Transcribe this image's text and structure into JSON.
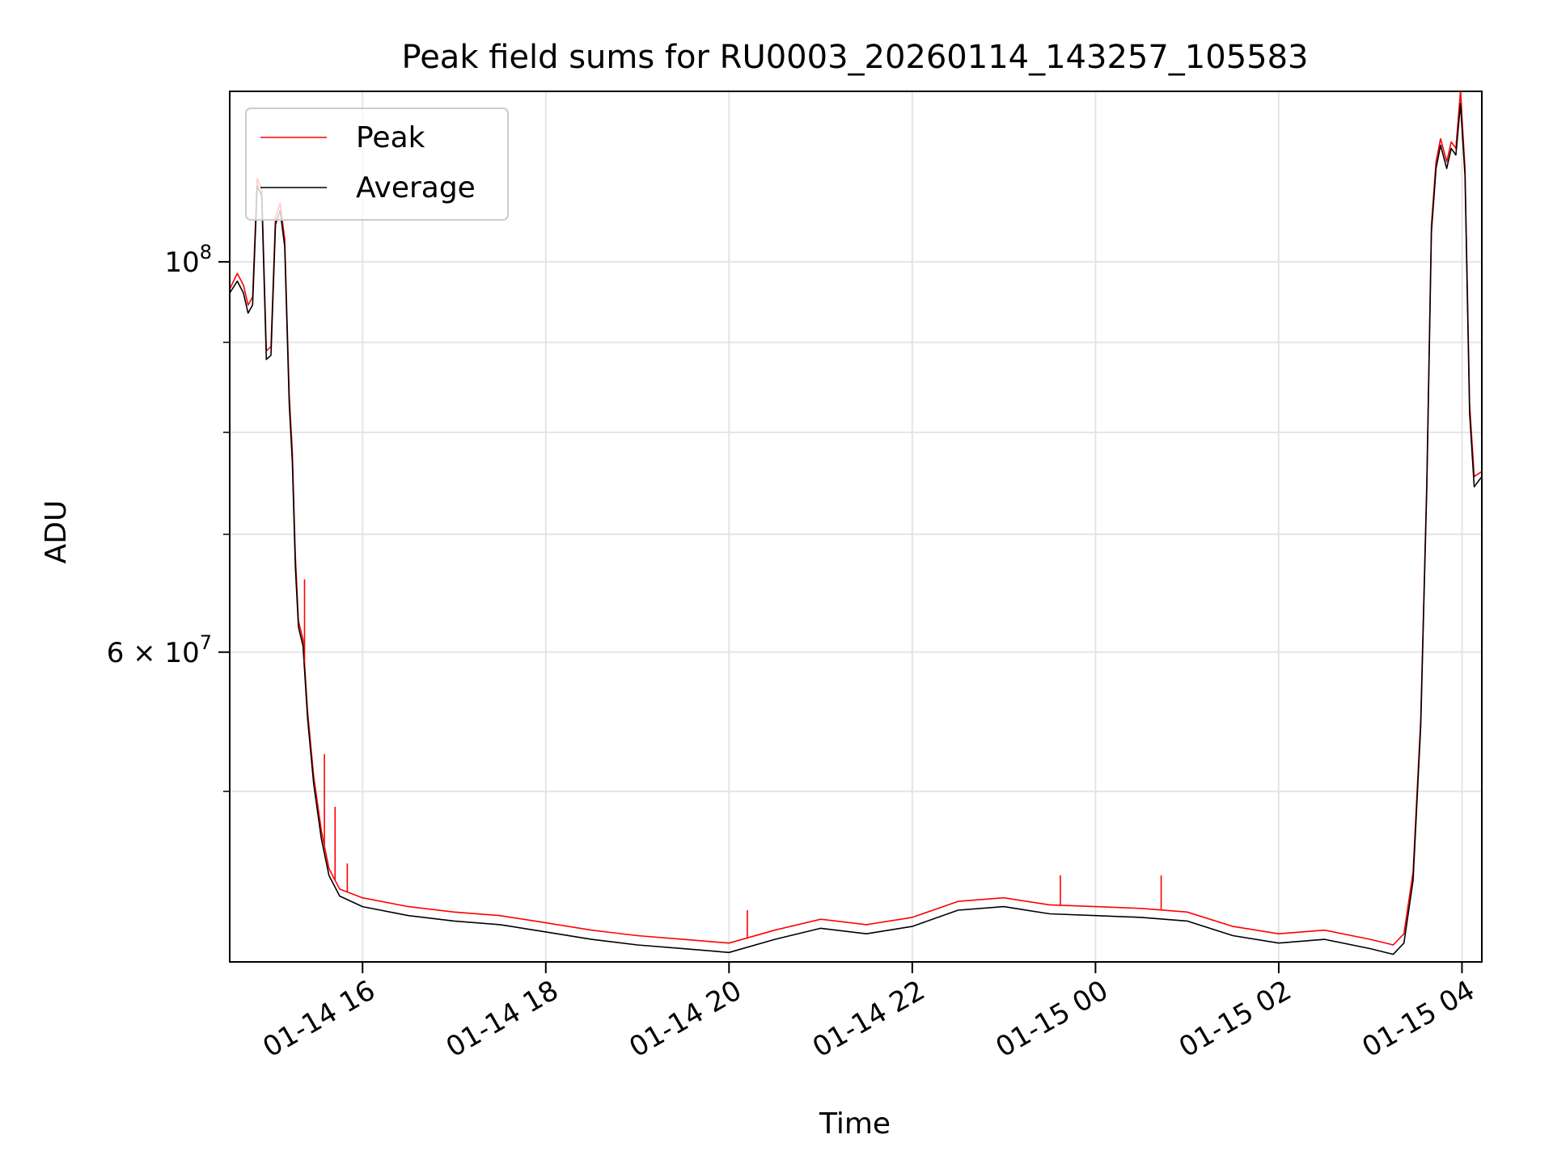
{
  "chart_data": {
    "type": "line",
    "title": "Peak field sums for RU0003_20260114_143257_105583",
    "xlabel": "Time",
    "ylabel": "ADU",
    "y_scale": "log",
    "ylim": [
      40000000,
      125000000
    ],
    "xlim": [
      "2026-01-14 14:33",
      "2026-01-15 04:13"
    ],
    "grid": true,
    "legend_position": "top-left",
    "x_ticks": [
      "01-14 16",
      "01-14 18",
      "01-14 20",
      "01-14 22",
      "01-15 00",
      "01-15 02",
      "01-15 04"
    ],
    "x_tick_values": [
      "2026-01-14 16:00",
      "2026-01-14 18:00",
      "2026-01-14 20:00",
      "2026-01-14 22:00",
      "2026-01-15 00:00",
      "2026-01-15 02:00",
      "2026-01-15 04:00"
    ],
    "y_ticks": [
      {
        "value": 100000000,
        "base": "10",
        "exp": "8",
        "mantissa": ""
      },
      {
        "value": 60000000,
        "base": "10",
        "exp": "7",
        "mantissa": "6 × "
      }
    ],
    "y_minor_ticks": [
      50000000,
      70000000,
      80000000,
      90000000
    ],
    "series": [
      {
        "name": "Peak",
        "color": "#ff0000",
        "points": [
          [
            "2026-01-14 14:33",
            96500000
          ],
          [
            "2026-01-14 14:38",
            98500000
          ],
          [
            "2026-01-14 14:42",
            97000000
          ],
          [
            "2026-01-14 14:45",
            94500000
          ],
          [
            "2026-01-14 14:48",
            95500000
          ],
          [
            "2026-01-14 14:51",
            111500000
          ],
          [
            "2026-01-14 14:54",
            110000000
          ],
          [
            "2026-01-14 14:57",
            89000000
          ],
          [
            "2026-01-14 15:00",
            89500000
          ],
          [
            "2026-01-14 15:03",
            106000000
          ],
          [
            "2026-01-14 15:06",
            108000000
          ],
          [
            "2026-01-14 15:09",
            103000000
          ],
          [
            "2026-01-14 15:12",
            84000000
          ],
          [
            "2026-01-14 15:14",
            78000000
          ],
          [
            "2026-01-14 15:16",
            68000000
          ],
          [
            "2026-01-14 15:18",
            62500000
          ],
          [
            "2026-01-14 15:21",
            61000000
          ],
          [
            "2026-01-14 15:24",
            55500000
          ],
          [
            "2026-01-14 15:28",
            51000000
          ],
          [
            "2026-01-14 15:33",
            47500000
          ],
          [
            "2026-01-14 15:38",
            45200000
          ],
          [
            "2026-01-14 15:45",
            44000000
          ],
          [
            "2026-01-14 16:00",
            43500000
          ],
          [
            "2026-01-14 16:30",
            43000000
          ],
          [
            "2026-01-14 17:00",
            42700000
          ],
          [
            "2026-01-14 17:30",
            42500000
          ],
          [
            "2026-01-14 18:00",
            42100000
          ],
          [
            "2026-01-14 18:30",
            41700000
          ],
          [
            "2026-01-14 19:00",
            41400000
          ],
          [
            "2026-01-14 19:30",
            41200000
          ],
          [
            "2026-01-14 20:00",
            41000000
          ],
          [
            "2026-01-14 20:30",
            41700000
          ],
          [
            "2026-01-14 21:00",
            42300000
          ],
          [
            "2026-01-14 21:30",
            42000000
          ],
          [
            "2026-01-14 22:00",
            42400000
          ],
          [
            "2026-01-14 22:30",
            43300000
          ],
          [
            "2026-01-14 23:00",
            43500000
          ],
          [
            "2026-01-14 23:30",
            43100000
          ],
          [
            "2026-01-15 00:00",
            43000000
          ],
          [
            "2026-01-15 00:30",
            42900000
          ],
          [
            "2026-01-15 01:00",
            42700000
          ],
          [
            "2026-01-15 01:30",
            41900000
          ],
          [
            "2026-01-15 02:00",
            41500000
          ],
          [
            "2026-01-15 02:30",
            41700000
          ],
          [
            "2026-01-15 03:00",
            41200000
          ],
          [
            "2026-01-15 03:15",
            40900000
          ],
          [
            "2026-01-15 03:22",
            41500000
          ],
          [
            "2026-01-15 03:28",
            45000000
          ],
          [
            "2026-01-15 03:33",
            55000000
          ],
          [
            "2026-01-15 03:37",
            75000000
          ],
          [
            "2026-01-15 03:40",
            105000000
          ],
          [
            "2026-01-15 03:43",
            114000000
          ],
          [
            "2026-01-15 03:46",
            117500000
          ],
          [
            "2026-01-15 03:50",
            114000000
          ],
          [
            "2026-01-15 03:53",
            117000000
          ],
          [
            "2026-01-15 03:56",
            116000000
          ],
          [
            "2026-01-15 03:59",
            125000000
          ],
          [
            "2026-01-15 04:02",
            113000000
          ],
          [
            "2026-01-15 04:05",
            83000000
          ],
          [
            "2026-01-15 04:08",
            75500000
          ],
          [
            "2026-01-15 04:13",
            76000000
          ]
        ]
      },
      {
        "name": "Average",
        "color": "#000000",
        "points": [
          [
            "2026-01-14 14:33",
            96000000
          ],
          [
            "2026-01-14 14:38",
            97500000
          ],
          [
            "2026-01-14 14:42",
            96000000
          ],
          [
            "2026-01-14 14:45",
            93500000
          ],
          [
            "2026-01-14 14:48",
            94500000
          ],
          [
            "2026-01-14 14:51",
            110500000
          ],
          [
            "2026-01-14 14:54",
            109000000
          ],
          [
            "2026-01-14 14:57",
            88000000
          ],
          [
            "2026-01-14 15:00",
            88500000
          ],
          [
            "2026-01-14 15:03",
            105000000
          ],
          [
            "2026-01-14 15:06",
            107000000
          ],
          [
            "2026-01-14 15:09",
            102000000
          ],
          [
            "2026-01-14 15:12",
            83000000
          ],
          [
            "2026-01-14 15:14",
            77000000
          ],
          [
            "2026-01-14 15:16",
            67000000
          ],
          [
            "2026-01-14 15:18",
            62000000
          ],
          [
            "2026-01-14 15:21",
            60500000
          ],
          [
            "2026-01-14 15:24",
            55000000
          ],
          [
            "2026-01-14 15:28",
            50500000
          ],
          [
            "2026-01-14 15:33",
            47000000
          ],
          [
            "2026-01-14 15:38",
            44800000
          ],
          [
            "2026-01-14 15:45",
            43600000
          ],
          [
            "2026-01-14 16:00",
            43000000
          ],
          [
            "2026-01-14 16:30",
            42500000
          ],
          [
            "2026-01-14 17:00",
            42200000
          ],
          [
            "2026-01-14 17:30",
            42000000
          ],
          [
            "2026-01-14 18:00",
            41600000
          ],
          [
            "2026-01-14 18:30",
            41200000
          ],
          [
            "2026-01-14 19:00",
            40900000
          ],
          [
            "2026-01-14 19:30",
            40700000
          ],
          [
            "2026-01-14 20:00",
            40500000
          ],
          [
            "2026-01-14 20:30",
            41200000
          ],
          [
            "2026-01-14 21:00",
            41800000
          ],
          [
            "2026-01-14 21:30",
            41500000
          ],
          [
            "2026-01-14 22:00",
            41900000
          ],
          [
            "2026-01-14 22:30",
            42800000
          ],
          [
            "2026-01-14 23:00",
            43000000
          ],
          [
            "2026-01-14 23:30",
            42600000
          ],
          [
            "2026-01-15 00:00",
            42500000
          ],
          [
            "2026-01-15 00:30",
            42400000
          ],
          [
            "2026-01-15 01:00",
            42200000
          ],
          [
            "2026-01-15 01:30",
            41400000
          ],
          [
            "2026-01-15 02:00",
            41000000
          ],
          [
            "2026-01-15 02:30",
            41200000
          ],
          [
            "2026-01-15 03:00",
            40700000
          ],
          [
            "2026-01-15 03:15",
            40400000
          ],
          [
            "2026-01-15 03:22",
            41000000
          ],
          [
            "2026-01-15 03:28",
            44500000
          ],
          [
            "2026-01-15 03:33",
            54500000
          ],
          [
            "2026-01-15 03:37",
            74500000
          ],
          [
            "2026-01-15 03:40",
            104000000
          ],
          [
            "2026-01-15 03:43",
            113000000
          ],
          [
            "2026-01-15 03:46",
            116500000
          ],
          [
            "2026-01-15 03:50",
            113000000
          ],
          [
            "2026-01-15 03:53",
            116000000
          ],
          [
            "2026-01-15 03:56",
            115000000
          ],
          [
            "2026-01-15 03:59",
            123000000
          ],
          [
            "2026-01-15 04:02",
            112000000
          ],
          [
            "2026-01-15 04:05",
            82000000
          ],
          [
            "2026-01-15 04:08",
            74500000
          ],
          [
            "2026-01-15 04:13",
            75500000
          ]
        ]
      }
    ],
    "spikes": [
      {
        "series": "Peak",
        "x": "2026-01-14 15:22",
        "y": 66000000
      },
      {
        "series": "Peak",
        "x": "2026-01-14 15:35",
        "y": 52500000
      },
      {
        "series": "Peak",
        "x": "2026-01-14 15:42",
        "y": 49000000
      },
      {
        "series": "Peak",
        "x": "2026-01-14 15:50",
        "y": 45500000
      },
      {
        "series": "Peak",
        "x": "2026-01-14 20:12",
        "y": 42800000
      },
      {
        "series": "Peak",
        "x": "2026-01-14 23:37",
        "y": 44800000
      },
      {
        "series": "Peak",
        "x": "2026-01-15 00:43",
        "y": 44800000
      }
    ]
  }
}
